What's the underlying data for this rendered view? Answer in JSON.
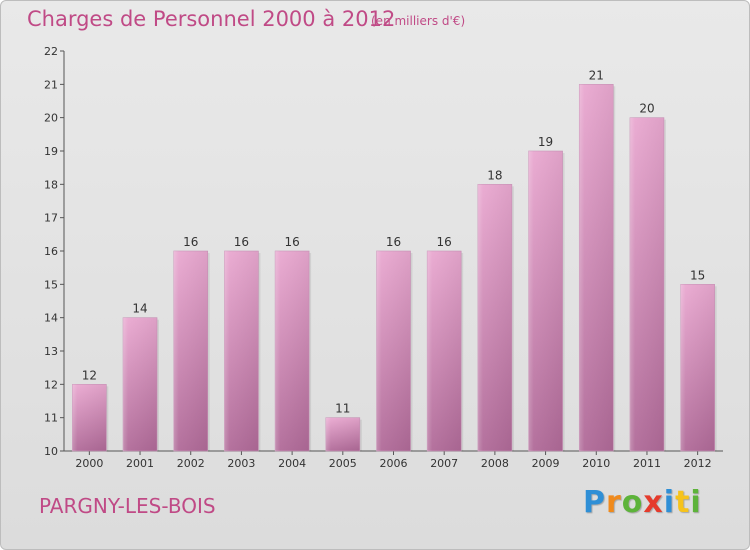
{
  "title": "Charges de Personnel 2000 à 2012",
  "subtitle": "(en milliers d'€)",
  "commune": "PARGNY-LES-BOIS",
  "logo": {
    "letters": [
      "P",
      "r",
      "o",
      "x",
      "i",
      "t",
      "i"
    ],
    "colors": [
      "#2f8fd6",
      "#f08a1c",
      "#5db33a",
      "#e53b2c",
      "#2f8fd6",
      "#f6c31c",
      "#5db33a"
    ]
  },
  "colors": {
    "bar_top": "#e9a8d0",
    "bar_bottom": "#b06a98",
    "title": "#c04a86"
  },
  "chart_data": {
    "type": "bar",
    "categories": [
      "2000",
      "2001",
      "2002",
      "2003",
      "2004",
      "2005",
      "2006",
      "2007",
      "2008",
      "2009",
      "2010",
      "2011",
      "2012"
    ],
    "values": [
      12,
      14,
      16,
      16,
      16,
      11,
      16,
      16,
      18,
      19,
      21,
      20,
      15
    ],
    "ylim": [
      10,
      22
    ],
    "yticks": [
      10,
      11,
      12,
      13,
      14,
      15,
      16,
      17,
      18,
      19,
      20,
      21,
      22
    ],
    "grid": false
  }
}
